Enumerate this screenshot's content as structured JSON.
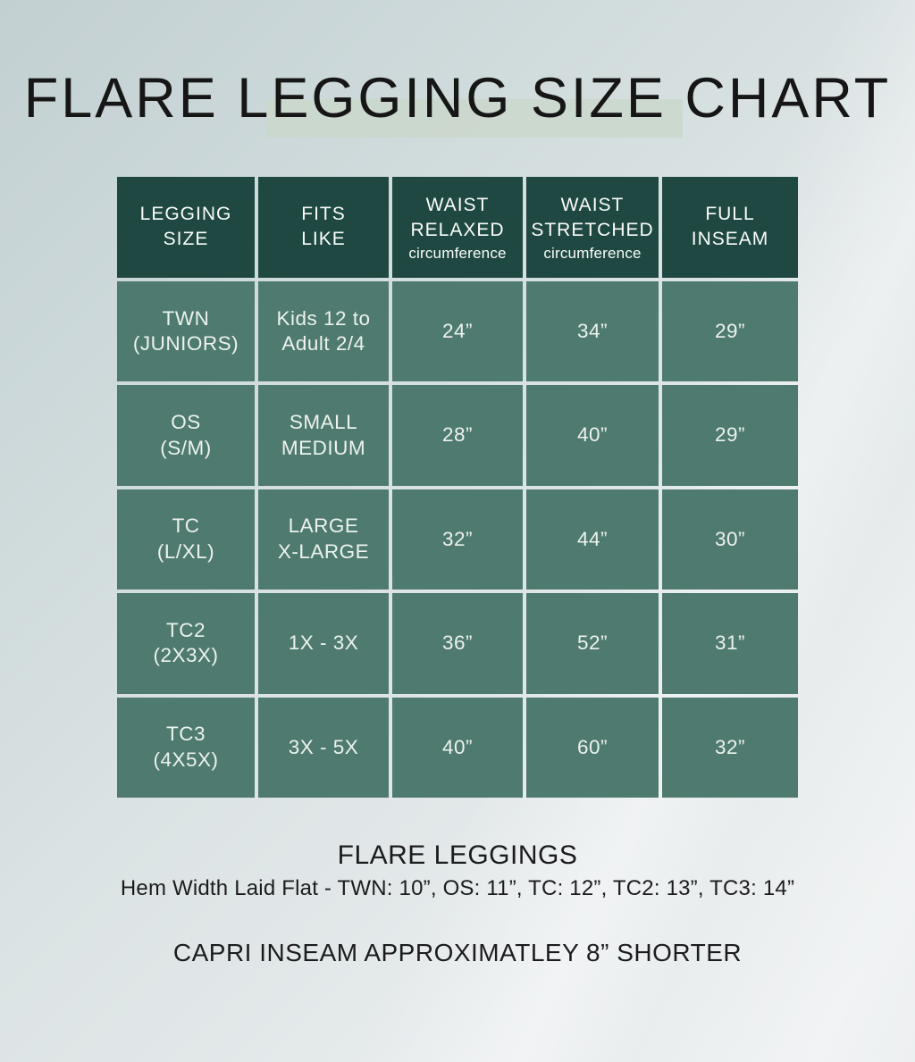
{
  "title": "FLARE LEGGING SIZE CHART",
  "chart_data": {
    "type": "table",
    "title": "FLARE LEGGING SIZE CHART",
    "columns": [
      {
        "title": "LEGGING\nSIZE",
        "sub": ""
      },
      {
        "title": "FITS\nLIKE",
        "sub": ""
      },
      {
        "title": "WAIST\nRELAXED",
        "sub": "circumference"
      },
      {
        "title": "WAIST\nSTRETCHED",
        "sub": "circumference"
      },
      {
        "title": "FULL\nINSEAM",
        "sub": ""
      }
    ],
    "rows": [
      {
        "legging_size": "TWN\n(JUNIORS)",
        "fits_like": "Kids 12 to\nAdult 2/4",
        "waist_relaxed": "24”",
        "waist_stretched": "34”",
        "full_inseam": "29”"
      },
      {
        "legging_size": "OS\n(S/M)",
        "fits_like": "SMALL\nMEDIUM",
        "waist_relaxed": "28”",
        "waist_stretched": "40”",
        "full_inseam": "29”"
      },
      {
        "legging_size": "TC\n(L/XL)",
        "fits_like": "LARGE\nX-LARGE",
        "waist_relaxed": "32”",
        "waist_stretched": "44”",
        "full_inseam": "30”"
      },
      {
        "legging_size": "TC2\n(2X3X)",
        "fits_like": "1X - 3X",
        "waist_relaxed": "36”",
        "waist_stretched": "52”",
        "full_inseam": "31”"
      },
      {
        "legging_size": "TC3\n(4X5X)",
        "fits_like": "3X - 5X",
        "waist_relaxed": "40”",
        "waist_stretched": "60”",
        "full_inseam": "32”"
      }
    ]
  },
  "footer": {
    "heading": "FLARE LEGGINGS",
    "hem_width_note": "Hem Width Laid Flat - TWN: 10”, OS: 11”, TC: 12”, TC2: 13”, TC3: 14”",
    "capri_note": "CAPRI INSEAM APPROXIMATLEY 8” SHORTER"
  },
  "colors": {
    "header_bg": "#1e4841",
    "cell_bg": "#4e7a6f",
    "header_text": "#fafcfa",
    "cell_text": "#edf2ee",
    "title_text": "#161616",
    "footer_text": "#1c1c1c",
    "title_highlight": "#cbd8cc",
    "bg_top_left": "#c3d0d2",
    "bg_bottom_right": "#eceff0"
  }
}
